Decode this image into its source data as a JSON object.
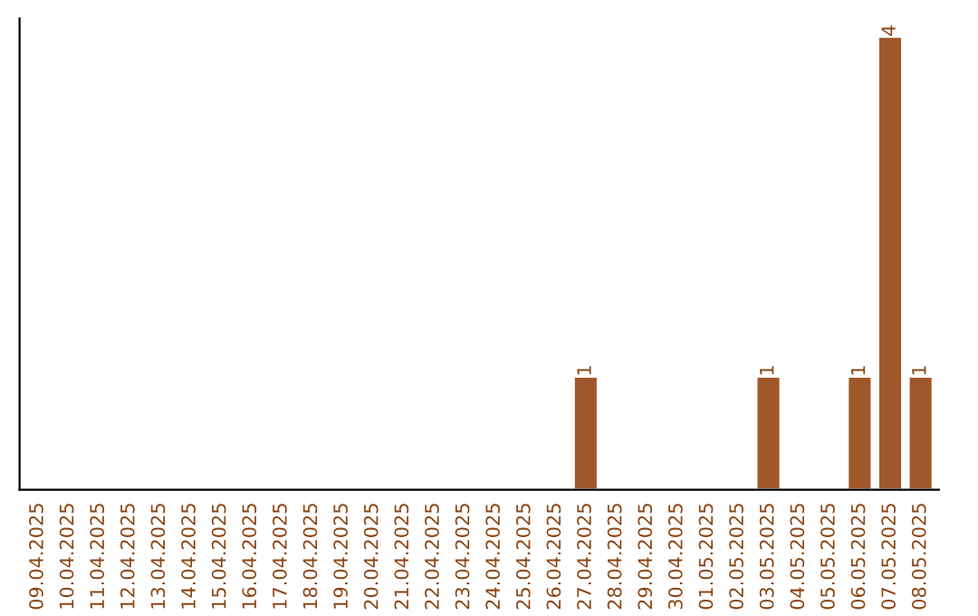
{
  "chart_data": {
    "type": "bar",
    "categories": [
      "09.04.2025",
      "10.04.2025",
      "11.04.2025",
      "12.04.2025",
      "13.04.2025",
      "14.04.2025",
      "15.04.2025",
      "16.04.2025",
      "17.04.2025",
      "18.04.2025",
      "19.04.2025",
      "20.04.2025",
      "21.04.2025",
      "22.04.2025",
      "23.04.2025",
      "24.04.2025",
      "25.04.2025",
      "26.04.2025",
      "27.04.2025",
      "28.04.2025",
      "29.04.2025",
      "30.04.2025",
      "01.05.2025",
      "02.05.2025",
      "03.05.2025",
      "04.05.2025",
      "05.05.2025",
      "06.05.2025",
      "07.05.2025",
      "08.05.2025"
    ],
    "values": [
      null,
      null,
      null,
      null,
      null,
      null,
      null,
      null,
      null,
      null,
      null,
      null,
      null,
      null,
      null,
      null,
      null,
      null,
      1,
      null,
      null,
      null,
      null,
      null,
      1,
      null,
      null,
      1,
      4,
      1
    ],
    "value_labels": [
      null,
      null,
      null,
      null,
      null,
      null,
      null,
      null,
      null,
      null,
      null,
      null,
      null,
      null,
      null,
      null,
      null,
      null,
      "1",
      null,
      null,
      null,
      null,
      null,
      "1",
      null,
      null,
      "1",
      "4",
      "1"
    ],
    "color": "#a0582a",
    "grid": false,
    "legend": false
  }
}
